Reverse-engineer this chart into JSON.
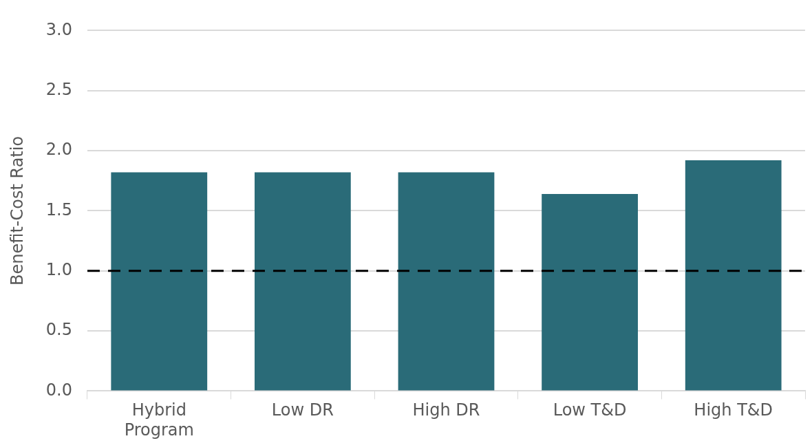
{
  "chart_data": {
    "type": "bar",
    "ylabel": "Benefit-Cost Ratio",
    "categories": [
      "Hybrid Program",
      "Low DR",
      "High DR",
      "Low T&D",
      "High T&D"
    ],
    "values": [
      1.82,
      1.82,
      1.82,
      1.64,
      1.92
    ],
    "color": "#2a6b78",
    "ylim": [
      0,
      3
    ],
    "yticks": [
      {
        "value": 0,
        "label": "0.0"
      },
      {
        "value": 0.5,
        "label": "0.5"
      },
      {
        "value": 1,
        "label": "1.0"
      },
      {
        "value": 1.5,
        "label": "1.5"
      },
      {
        "value": 2,
        "label": "2.0"
      },
      {
        "value": 2.5,
        "label": "2.5"
      },
      {
        "value": 3,
        "label": "3.0"
      }
    ],
    "ref_lines": [
      {
        "axis": "y",
        "value": 1,
        "color": "#000000",
        "line_style": "dashed"
      }
    ],
    "grid": "y",
    "legend": false
  }
}
